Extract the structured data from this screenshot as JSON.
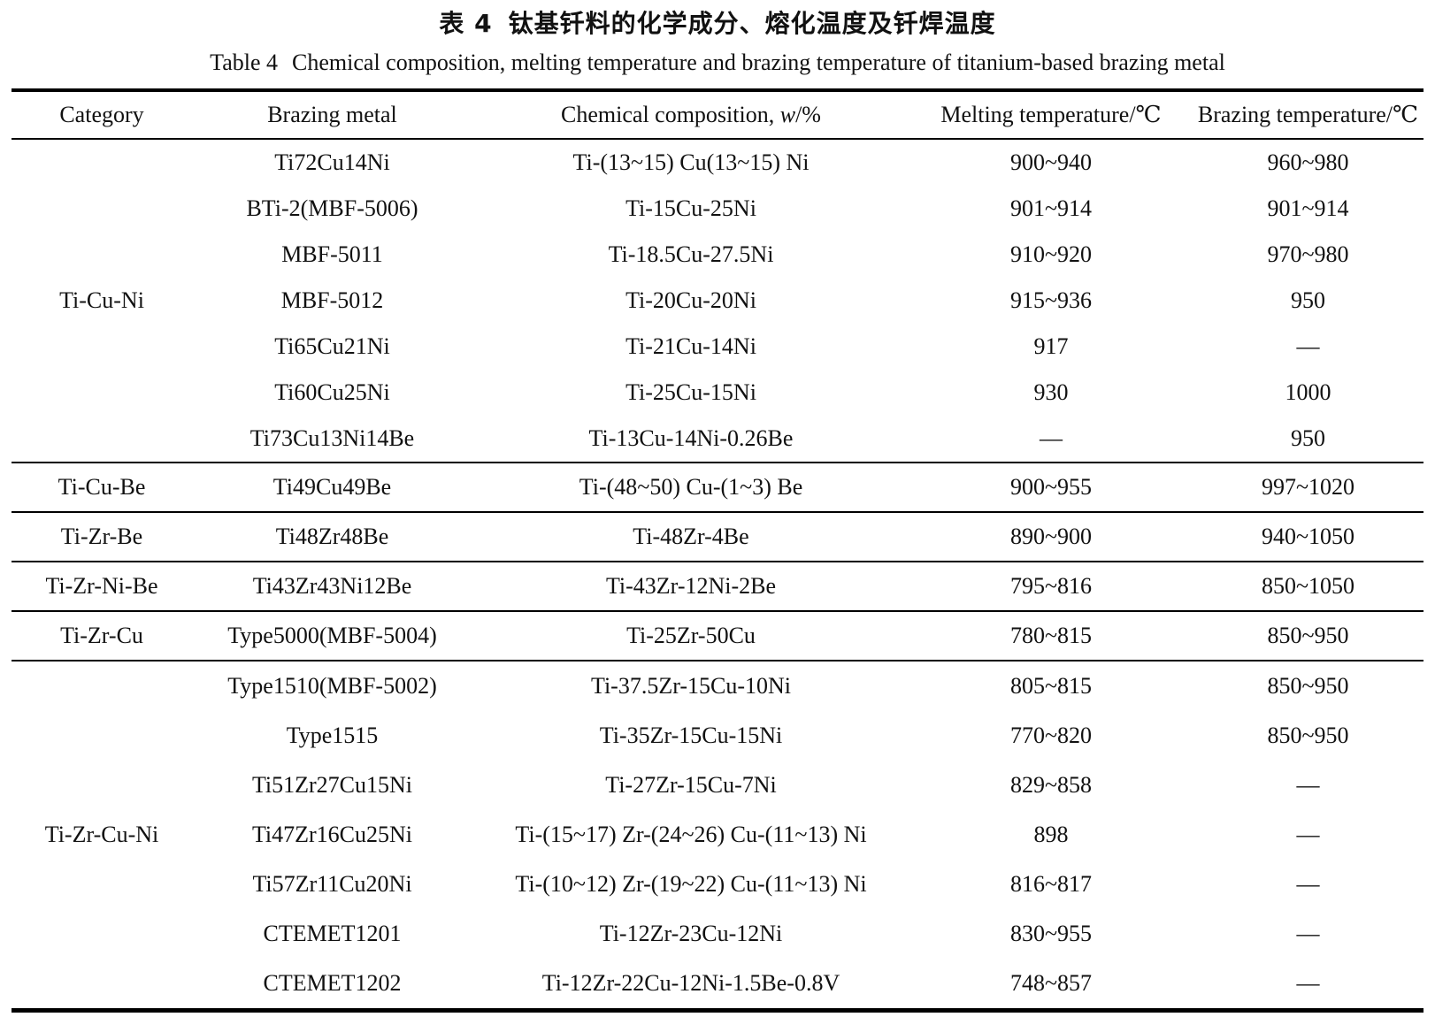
{
  "caption": {
    "zh_label": "表 4",
    "zh_title": "钛基钎料的化学成分、熔化温度及钎焊温度",
    "en_label": "Table 4",
    "en_title": "Chemical composition, melting temperature and brazing temperature of titanium-based brazing metal"
  },
  "table": {
    "headers": {
      "category": "Category",
      "metal": "Brazing metal",
      "composition_prefix": "Chemical composition, ",
      "composition_symbol": "w",
      "composition_suffix": "/%",
      "melting": "Melting temperature/℃",
      "brazing": "Brazing temperature/℃"
    },
    "empty_marker": "—",
    "groups": [
      {
        "category": "Ti-Cu-Ni",
        "rows": [
          {
            "metal": "Ti72Cu14Ni",
            "composition": "Ti-(13~15) Cu(13~15) Ni",
            "melting": "900~940",
            "brazing": "960~980"
          },
          {
            "metal": "BTi-2(MBF-5006)",
            "composition": "Ti-15Cu-25Ni",
            "melting": "901~914",
            "brazing": "901~914"
          },
          {
            "metal": "MBF-5011",
            "composition": "Ti-18.5Cu-27.5Ni",
            "melting": "910~920",
            "brazing": "970~980"
          },
          {
            "metal": "MBF-5012",
            "composition": "Ti-20Cu-20Ni",
            "melting": "915~936",
            "brazing": "950"
          },
          {
            "metal": "Ti65Cu21Ni",
            "composition": "Ti-21Cu-14Ni",
            "melting": "917",
            "brazing": "—"
          },
          {
            "metal": "Ti60Cu25Ni",
            "composition": "Ti-25Cu-15Ni",
            "melting": "930",
            "brazing": "1000"
          },
          {
            "metal": "Ti73Cu13Ni14Be",
            "composition": "Ti-13Cu-14Ni-0.26Be",
            "melting": "—",
            "brazing": "950"
          }
        ]
      },
      {
        "category": "Ti-Cu-Be",
        "rows": [
          {
            "metal": "Ti49Cu49Be",
            "composition": "Ti-(48~50) Cu-(1~3) Be",
            "melting": "900~955",
            "brazing": "997~1020"
          }
        ]
      },
      {
        "category": "Ti-Zr-Be",
        "rows": [
          {
            "metal": "Ti48Zr48Be",
            "composition": "Ti-48Zr-4Be",
            "melting": "890~900",
            "brazing": "940~1050"
          }
        ]
      },
      {
        "category": "Ti-Zr-Ni-Be",
        "rows": [
          {
            "metal": "Ti43Zr43Ni12Be",
            "composition": "Ti-43Zr-12Ni-2Be",
            "melting": "795~816",
            "brazing": "850~1050"
          }
        ]
      },
      {
        "category": "Ti-Zr-Cu",
        "rows": [
          {
            "metal": "Type5000(MBF-5004)",
            "composition": "Ti-25Zr-50Cu",
            "melting": "780~815",
            "brazing": "850~950"
          }
        ]
      },
      {
        "category": "Ti-Zr-Cu-Ni",
        "rows": [
          {
            "metal": "Type1510(MBF-5002)",
            "composition": "Ti-37.5Zr-15Cu-10Ni",
            "melting": "805~815",
            "brazing": "850~950"
          },
          {
            "metal": "Type1515",
            "composition": "Ti-35Zr-15Cu-15Ni",
            "melting": "770~820",
            "brazing": "850~950"
          },
          {
            "metal": "Ti51Zr27Cu15Ni",
            "composition": "Ti-27Zr-15Cu-7Ni",
            "melting": "829~858",
            "brazing": "—"
          },
          {
            "metal": "Ti47Zr16Cu25Ni",
            "composition": "Ti-(15~17) Zr-(24~26) Cu-(11~13) Ni",
            "melting": "898",
            "brazing": "—"
          },
          {
            "metal": "Ti57Zr11Cu20Ni",
            "composition": "Ti-(10~12) Zr-(19~22) Cu-(11~13) Ni",
            "melting": "816~817",
            "brazing": "—"
          },
          {
            "metal": "CTEMET1201",
            "composition": "Ti-12Zr-23Cu-12Ni",
            "melting": "830~955",
            "brazing": "—"
          },
          {
            "metal": "CTEMET1202",
            "composition": "Ti-12Zr-22Cu-12Ni-1.5Be-0.8V",
            "melting": "748~857",
            "brazing": "—"
          }
        ]
      }
    ]
  },
  "colors": {
    "background": "#ffffff",
    "text": "#111111",
    "rule": "#000000"
  }
}
